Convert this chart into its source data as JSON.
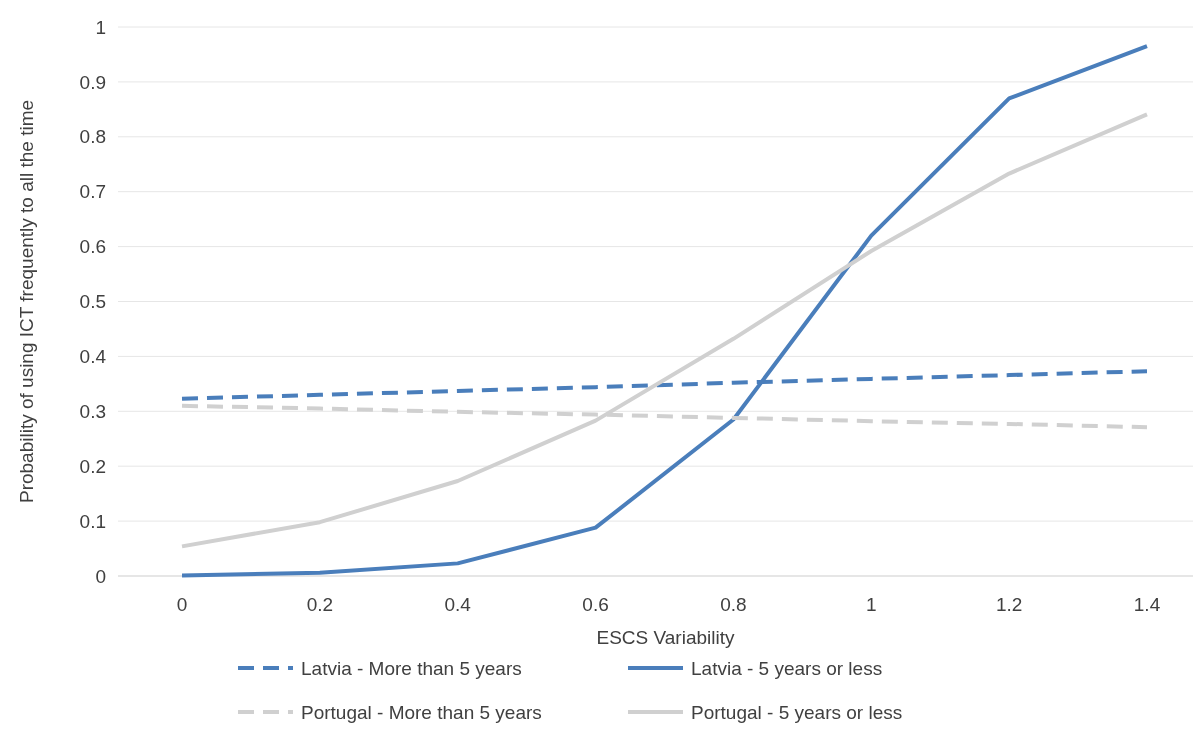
{
  "chart_data": {
    "type": "line",
    "xlabel": "ESCS Variability",
    "ylabel": "Probability of using ICT frequently to all the time",
    "categories": [
      "0",
      "0.2",
      "0.4",
      "0.6",
      "0.8",
      "1",
      "1.2",
      "1.4"
    ],
    "series": [
      {
        "name": "Latvia - More than 5 years",
        "color": "#4a7ebb",
        "line_style": "dashed",
        "values": [
          0.323,
          0.33,
          0.337,
          0.344,
          0.352,
          0.359,
          0.366,
          0.373
        ]
      },
      {
        "name": "Latvia - 5 years or less",
        "color": "#4a7ebb",
        "line_style": "solid",
        "values": [
          0.001,
          0.006,
          0.023,
          0.088,
          0.285,
          0.62,
          0.87,
          0.965
        ]
      },
      {
        "name": "Portugal - More than 5 years",
        "color": "#d0d0d0",
        "line_style": "dashed",
        "values": [
          0.31,
          0.305,
          0.299,
          0.294,
          0.288,
          0.282,
          0.277,
          0.271
        ]
      },
      {
        "name": "Portugal - 5 years or less",
        "color": "#d0d0d0",
        "line_style": "solid",
        "values": [
          0.054,
          0.098,
          0.173,
          0.283,
          0.432,
          0.592,
          0.733,
          0.841
        ]
      }
    ],
    "ylim": [
      0,
      1
    ],
    "yticks": [
      0,
      0.1,
      0.2,
      0.3,
      0.4,
      0.5,
      0.6,
      0.7,
      0.8,
      0.9,
      1
    ],
    "grid": "y",
    "legend": "bottom",
    "marker": "none"
  }
}
